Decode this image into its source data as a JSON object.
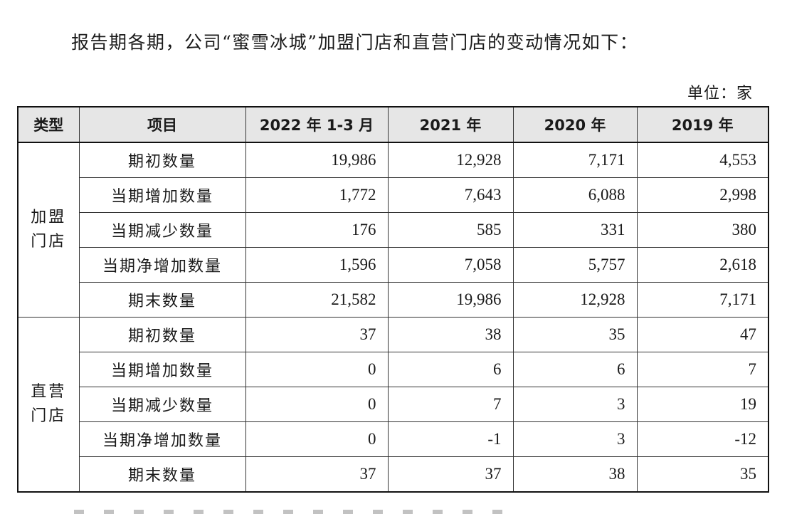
{
  "intro_text": "报告期各期，公司“蜜雪冰城”加盟门店和直营门店的变动情况如下：",
  "unit_text": "单位：家",
  "headers": {
    "type": "类型",
    "item": "项目",
    "col1": "2022 年 1-3 月",
    "col2": "2021 年",
    "col3": "2020 年",
    "col4": "2019 年"
  },
  "groups": [
    {
      "type": "加盟门店",
      "rows": [
        {
          "item": "期初数量",
          "values": [
            "19,986",
            "12,928",
            "7,171",
            "4,553"
          ]
        },
        {
          "item": "当期增加数量",
          "values": [
            "1,772",
            "7,643",
            "6,088",
            "2,998"
          ]
        },
        {
          "item": "当期减少数量",
          "values": [
            "176",
            "585",
            "331",
            "380"
          ]
        },
        {
          "item": "当期净增加数量",
          "values": [
            "1,596",
            "7,058",
            "5,757",
            "2,618"
          ]
        },
        {
          "item": "期末数量",
          "values": [
            "21,582",
            "19,986",
            "12,928",
            "7,171"
          ]
        }
      ]
    },
    {
      "type": "直营门店",
      "rows": [
        {
          "item": "期初数量",
          "values": [
            "37",
            "38",
            "35",
            "47"
          ]
        },
        {
          "item": "当期增加数量",
          "values": [
            "0",
            "6",
            "6",
            "7"
          ]
        },
        {
          "item": "当期减少数量",
          "values": [
            "0",
            "7",
            "3",
            "19"
          ]
        },
        {
          "item": "当期净增加数量",
          "values": [
            "0",
            "-1",
            "3",
            "-12"
          ]
        },
        {
          "item": "期末数量",
          "values": [
            "37",
            "37",
            "38",
            "35"
          ]
        }
      ]
    }
  ]
}
